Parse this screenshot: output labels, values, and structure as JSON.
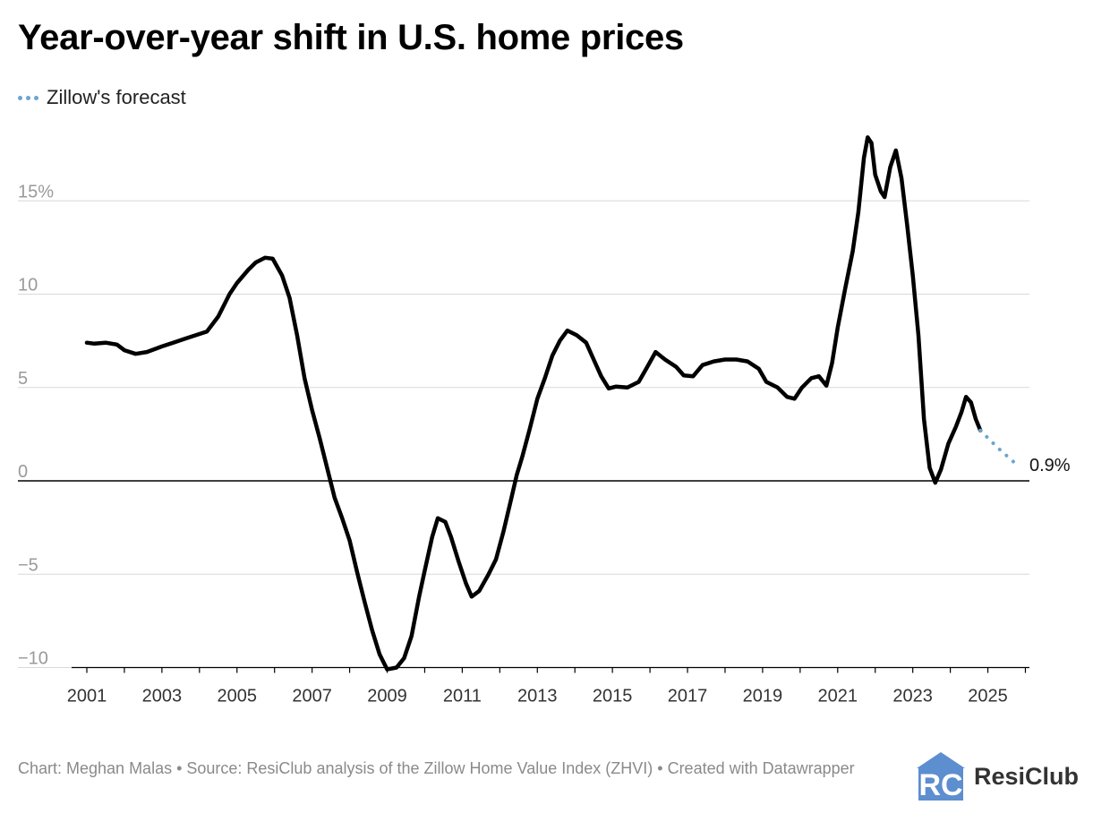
{
  "header": {
    "title": "Year-over-year shift in U.S. home prices"
  },
  "legend": {
    "label": "Zillow's forecast"
  },
  "colors": {
    "actual": "#000000",
    "forecast": "#6ba5cd",
    "grid": "#d9d9d9",
    "tick_text": "#9a9a9a",
    "x_tick_text": "#333333",
    "logo_blue": "#5d8ecf"
  },
  "footer": {
    "text": "Chart: Meghan Malas • Source: ResiClub analysis of the Zillow Home Value Index (ZHVI)  • Created with Datawrapper"
  },
  "logo": {
    "mark": "RC",
    "name": "ResiClub"
  },
  "chart_data": {
    "type": "line",
    "title": "Year-over-year shift in U.S. home prices",
    "xlabel": "",
    "ylabel": "",
    "xlim": [
      2001,
      2026.5
    ],
    "ylim": [
      -10,
      18.5
    ],
    "y_ticks": [
      {
        "value": 15,
        "label": "15%"
      },
      {
        "value": 10,
        "label": "10"
      },
      {
        "value": 5,
        "label": "5"
      },
      {
        "value": 0,
        "label": "0"
      },
      {
        "value": -5,
        "label": "−5"
      },
      {
        "value": -10,
        "label": "−10"
      }
    ],
    "x_ticks": [
      2001,
      2002,
      2003,
      2004,
      2005,
      2006,
      2007,
      2008,
      2009,
      2010,
      2011,
      2012,
      2013,
      2014,
      2015,
      2016,
      2017,
      2018,
      2019,
      2020,
      2021,
      2022,
      2023,
      2024,
      2025,
      2026
    ],
    "x_tick_labels": [
      {
        "value": 2001,
        "label": "2001"
      },
      {
        "value": 2003,
        "label": "2003"
      },
      {
        "value": 2005,
        "label": "2005"
      },
      {
        "value": 2007,
        "label": "2007"
      },
      {
        "value": 2009,
        "label": "2009"
      },
      {
        "value": 2011,
        "label": "2011"
      },
      {
        "value": 2013,
        "label": "2013"
      },
      {
        "value": 2015,
        "label": "2015"
      },
      {
        "value": 2017,
        "label": "2017"
      },
      {
        "value": 2019,
        "label": "2019"
      },
      {
        "value": 2021,
        "label": "2021"
      },
      {
        "value": 2023,
        "label": "2023"
      },
      {
        "value": 2025,
        "label": "2025"
      }
    ],
    "series": [
      {
        "name": "Year-over-year change",
        "style": "solid",
        "points": [
          [
            2001.0,
            7.4
          ],
          [
            2001.2,
            7.35
          ],
          [
            2001.5,
            7.4
          ],
          [
            2001.8,
            7.3
          ],
          [
            2002.0,
            7.0
          ],
          [
            2002.3,
            6.8
          ],
          [
            2002.6,
            6.9
          ],
          [
            2003.0,
            7.2
          ],
          [
            2003.3,
            7.4
          ],
          [
            2003.6,
            7.6
          ],
          [
            2003.9,
            7.8
          ],
          [
            2004.2,
            8.0
          ],
          [
            2004.5,
            8.8
          ],
          [
            2004.8,
            10.0
          ],
          [
            2005.0,
            10.6
          ],
          [
            2005.3,
            11.3
          ],
          [
            2005.5,
            11.7
          ],
          [
            2005.75,
            11.95
          ],
          [
            2005.95,
            11.9
          ],
          [
            2006.2,
            11.0
          ],
          [
            2006.4,
            9.8
          ],
          [
            2006.6,
            7.8
          ],
          [
            2006.8,
            5.5
          ],
          [
            2007.0,
            3.8
          ],
          [
            2007.2,
            2.3
          ],
          [
            2007.4,
            0.7
          ],
          [
            2007.6,
            -0.9
          ],
          [
            2007.8,
            -2.0
          ],
          [
            2008.0,
            -3.2
          ],
          [
            2008.2,
            -4.9
          ],
          [
            2008.4,
            -6.5
          ],
          [
            2008.6,
            -8.0
          ],
          [
            2008.8,
            -9.3
          ],
          [
            2009.0,
            -10.1
          ],
          [
            2009.25,
            -10.0
          ],
          [
            2009.45,
            -9.5
          ],
          [
            2009.65,
            -8.3
          ],
          [
            2009.85,
            -6.2
          ],
          [
            2010.0,
            -4.8
          ],
          [
            2010.2,
            -3.0
          ],
          [
            2010.35,
            -2.0
          ],
          [
            2010.55,
            -2.2
          ],
          [
            2010.7,
            -3.0
          ],
          [
            2010.9,
            -4.3
          ],
          [
            2011.1,
            -5.5
          ],
          [
            2011.25,
            -6.2
          ],
          [
            2011.45,
            -5.9
          ],
          [
            2011.7,
            -5.0
          ],
          [
            2011.9,
            -4.2
          ],
          [
            2012.1,
            -2.7
          ],
          [
            2012.3,
            -1.0
          ],
          [
            2012.45,
            0.3
          ],
          [
            2012.6,
            1.3
          ],
          [
            2012.8,
            2.8
          ],
          [
            2013.0,
            4.4
          ],
          [
            2013.2,
            5.5
          ],
          [
            2013.4,
            6.7
          ],
          [
            2013.6,
            7.5
          ],
          [
            2013.8,
            8.05
          ],
          [
            2014.05,
            7.8
          ],
          [
            2014.3,
            7.4
          ],
          [
            2014.5,
            6.5
          ],
          [
            2014.7,
            5.6
          ],
          [
            2014.9,
            4.95
          ],
          [
            2015.1,
            5.05
          ],
          [
            2015.4,
            5.0
          ],
          [
            2015.7,
            5.3
          ],
          [
            2015.9,
            6.0
          ],
          [
            2016.15,
            6.9
          ],
          [
            2016.4,
            6.5
          ],
          [
            2016.7,
            6.1
          ],
          [
            2016.9,
            5.65
          ],
          [
            2017.15,
            5.6
          ],
          [
            2017.4,
            6.2
          ],
          [
            2017.7,
            6.4
          ],
          [
            2018.0,
            6.5
          ],
          [
            2018.3,
            6.5
          ],
          [
            2018.6,
            6.4
          ],
          [
            2018.9,
            6.0
          ],
          [
            2019.1,
            5.3
          ],
          [
            2019.4,
            5.0
          ],
          [
            2019.65,
            4.5
          ],
          [
            2019.85,
            4.4
          ],
          [
            2020.05,
            5.0
          ],
          [
            2020.3,
            5.5
          ],
          [
            2020.5,
            5.6
          ],
          [
            2020.7,
            5.1
          ],
          [
            2020.85,
            6.3
          ],
          [
            2021.0,
            8.2
          ],
          [
            2021.2,
            10.3
          ],
          [
            2021.4,
            12.3
          ],
          [
            2021.55,
            14.4
          ],
          [
            2021.7,
            17.3
          ],
          [
            2021.8,
            18.4
          ],
          [
            2021.9,
            18.1
          ],
          [
            2022.0,
            16.4
          ],
          [
            2022.15,
            15.5
          ],
          [
            2022.25,
            15.2
          ],
          [
            2022.4,
            16.8
          ],
          [
            2022.55,
            17.7
          ],
          [
            2022.7,
            16.2
          ],
          [
            2022.85,
            13.7
          ],
          [
            2023.0,
            11.0
          ],
          [
            2023.15,
            7.8
          ],
          [
            2023.3,
            3.3
          ],
          [
            2023.45,
            0.7
          ],
          [
            2023.6,
            -0.1
          ],
          [
            2023.75,
            0.6
          ],
          [
            2023.95,
            2.0
          ],
          [
            2024.15,
            2.9
          ],
          [
            2024.3,
            3.7
          ],
          [
            2024.42,
            4.5
          ],
          [
            2024.55,
            4.2
          ],
          [
            2024.68,
            3.3
          ],
          [
            2024.8,
            2.7
          ]
        ]
      },
      {
        "name": "Zillow's forecast",
        "style": "dotted",
        "points": [
          [
            2024.8,
            2.7
          ],
          [
            2025.0,
            2.3
          ],
          [
            2025.25,
            1.8
          ],
          [
            2025.5,
            1.35
          ],
          [
            2025.75,
            0.9
          ]
        ]
      }
    ],
    "annotations": [
      {
        "x": 2025.75,
        "y": 0.9,
        "text": "0.9%"
      }
    ],
    "legend": [
      "Zillow's forecast"
    ],
    "grid": true
  }
}
